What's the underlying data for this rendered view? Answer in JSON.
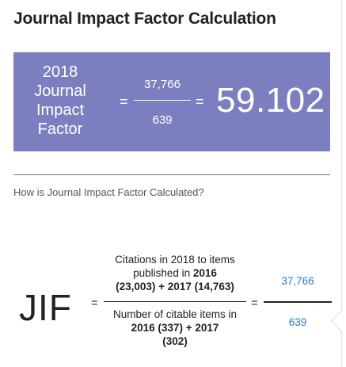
{
  "title": "Journal Impact Factor Calculation",
  "banner": {
    "label": "2018 Journal Impact Factor",
    "equals": "=",
    "numerator": "37,766",
    "denominator": "639",
    "result": "59.102",
    "background": "#7b7fc0"
  },
  "subtitle": "How is Journal Impact Factor Calculated?",
  "formula": {
    "symbol": "JIF",
    "equals": "=",
    "numerator_line1": "Citations in 2018 to items published in ",
    "numerator_year1": "2016",
    "numerator_line2": "(23,003) + 2017 (14,763)",
    "denominator_line1": "Number of citable items in ",
    "denominator_year1": "2016",
    "denominator_line2": " (337) + 2017",
    "denominator_line3": "(302)",
    "value_numerator": "37,766",
    "value_denominator": "639",
    "value_color": "#2a7ac8"
  }
}
